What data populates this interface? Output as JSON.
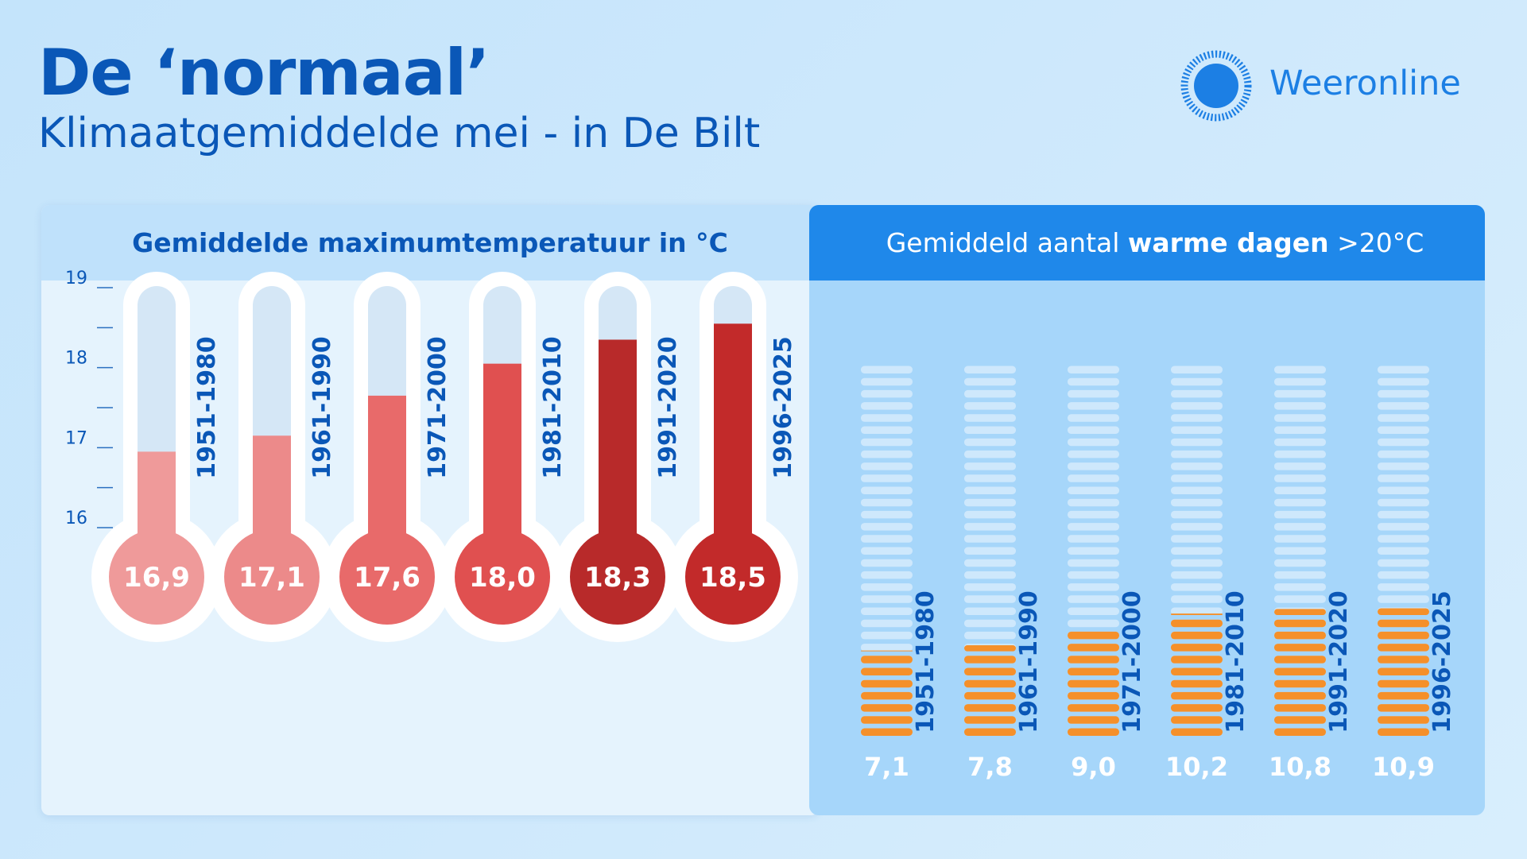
{
  "header": {
    "title": "De ‘normaal’",
    "subtitle": "Klimaatgemiddelde mei - in De Bilt"
  },
  "brand": {
    "name": "Weeronline",
    "icon": "sun-icon"
  },
  "colors": {
    "title_blue": "#0a57b7",
    "brand_blue": "#1c7fe4",
    "right_header": "#1f88ea",
    "bar_orange": "#f5902a",
    "thermo_colors": [
      "#ef9a9a",
      "#ec8a8a",
      "#e86a6a",
      "#e05050",
      "#b82a2a",
      "#c22a2a"
    ]
  },
  "chart_data": [
    {
      "type": "bar",
      "title": "Gemiddelde maximumtemperatuur in °C",
      "categories": [
        "1951-1980",
        "1961-1990",
        "1971-2000",
        "1981-2010",
        "1991-2020",
        "1996-2025"
      ],
      "values": [
        16.9,
        17.1,
        17.6,
        18.0,
        18.3,
        18.5
      ],
      "value_labels": [
        "16,9",
        "17,1",
        "17,6",
        "18,0",
        "18,3",
        "18,5"
      ],
      "y_ticks": [
        "19",
        "18",
        "17",
        "16"
      ],
      "ylim": [
        16,
        19
      ],
      "grid": false,
      "style": "thermometers"
    },
    {
      "type": "bar",
      "title_parts": [
        "Gemiddeld aantal ",
        "warme dagen",
        " >20°C"
      ],
      "categories": [
        "1951-1980",
        "1961-1990",
        "1971-2000",
        "1981-2010",
        "1991-2020",
        "1996-2025"
      ],
      "values": [
        7.1,
        7.8,
        9.0,
        10.2,
        10.8,
        10.9
      ],
      "value_labels": [
        "7,1",
        "7,8",
        "9,0",
        "10,2",
        "10,8",
        "10,9"
      ],
      "ylim": [
        0,
        31
      ],
      "grid": false,
      "style": "stacked-day-segments"
    }
  ]
}
